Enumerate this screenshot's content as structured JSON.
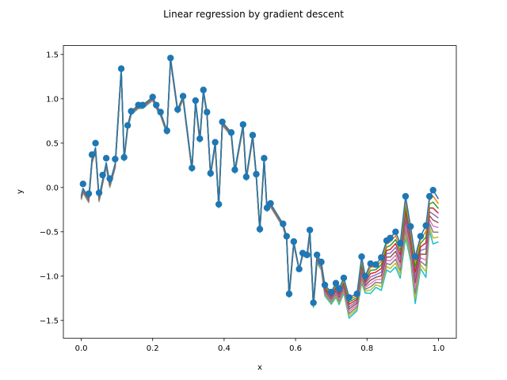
{
  "chart_data": {
    "type": "scatter",
    "title": "Linear regression by gradient descent",
    "xlabel": "x",
    "ylabel": "y",
    "xlim": [
      -0.05,
      1.05
    ],
    "ylim": [
      -1.7,
      1.6
    ],
    "xticks": [
      0.0,
      0.2,
      0.4,
      0.6,
      0.8,
      1.0
    ],
    "xtick_labels": [
      "0.0",
      "0.2",
      "0.4",
      "0.6",
      "0.8",
      "1.0"
    ],
    "yticks": [
      -1.5,
      -1.0,
      -0.5,
      0.0,
      0.5,
      1.0,
      1.5
    ],
    "ytick_labels": [
      "−1.5",
      "−1.0",
      "−0.5",
      "0.0",
      "0.5",
      "1.0",
      "1.5"
    ],
    "grid": false,
    "legend": false,
    "scatter_color": "#1f77b4",
    "line_colors": [
      "#1f77b4",
      "#ff7f0e",
      "#2ca02c",
      "#d62728",
      "#9467bd",
      "#8c564b",
      "#e377c2",
      "#7f7f7f",
      "#bcbd22",
      "#17becf"
    ],
    "points": [
      {
        "x": 0.005,
        "y": 0.04
      },
      {
        "x": 0.021,
        "y": -0.07
      },
      {
        "x": 0.03,
        "y": 0.37
      },
      {
        "x": 0.04,
        "y": 0.5
      },
      {
        "x": 0.05,
        "y": -0.06
      },
      {
        "x": 0.06,
        "y": 0.14
      },
      {
        "x": 0.07,
        "y": 0.33
      },
      {
        "x": 0.08,
        "y": 0.1
      },
      {
        "x": 0.095,
        "y": 0.32
      },
      {
        "x": 0.112,
        "y": 1.34
      },
      {
        "x": 0.12,
        "y": 0.34
      },
      {
        "x": 0.13,
        "y": 0.7
      },
      {
        "x": 0.14,
        "y": 0.86
      },
      {
        "x": 0.16,
        "y": 0.93
      },
      {
        "x": 0.172,
        "y": 0.93
      },
      {
        "x": 0.2,
        "y": 1.02
      },
      {
        "x": 0.21,
        "y": 0.93
      },
      {
        "x": 0.222,
        "y": 0.85
      },
      {
        "x": 0.24,
        "y": 0.64
      },
      {
        "x": 0.25,
        "y": 1.46
      },
      {
        "x": 0.27,
        "y": 0.88
      },
      {
        "x": 0.285,
        "y": 1.03
      },
      {
        "x": 0.31,
        "y": 0.22
      },
      {
        "x": 0.32,
        "y": 0.98
      },
      {
        "x": 0.332,
        "y": 0.55
      },
      {
        "x": 0.342,
        "y": 1.1
      },
      {
        "x": 0.352,
        "y": 0.85
      },
      {
        "x": 0.362,
        "y": 0.16
      },
      {
        "x": 0.375,
        "y": 0.51
      },
      {
        "x": 0.385,
        "y": -0.19
      },
      {
        "x": 0.395,
        "y": 0.74
      },
      {
        "x": 0.42,
        "y": 0.62
      },
      {
        "x": 0.43,
        "y": 0.2
      },
      {
        "x": 0.453,
        "y": 0.71
      },
      {
        "x": 0.462,
        "y": 0.12
      },
      {
        "x": 0.48,
        "y": 0.59
      },
      {
        "x": 0.49,
        "y": 0.15
      },
      {
        "x": 0.5,
        "y": -0.47
      },
      {
        "x": 0.512,
        "y": 0.33
      },
      {
        "x": 0.52,
        "y": -0.23
      },
      {
        "x": 0.53,
        "y": -0.18
      },
      {
        "x": 0.565,
        "y": -0.41
      },
      {
        "x": 0.575,
        "y": -0.55
      },
      {
        "x": 0.582,
        "y": -1.2
      },
      {
        "x": 0.595,
        "y": -0.61
      },
      {
        "x": 0.61,
        "y": -0.92
      },
      {
        "x": 0.62,
        "y": -0.74
      },
      {
        "x": 0.632,
        "y": -0.76
      },
      {
        "x": 0.64,
        "y": -0.48
      },
      {
        "x": 0.65,
        "y": -1.3
      },
      {
        "x": 0.66,
        "y": -0.76
      },
      {
        "x": 0.672,
        "y": -0.84
      },
      {
        "x": 0.682,
        "y": -1.1
      },
      {
        "x": 0.7,
        "y": -1.18
      },
      {
        "x": 0.713,
        "y": -1.08
      },
      {
        "x": 0.722,
        "y": -1.14
      },
      {
        "x": 0.735,
        "y": -1.02
      },
      {
        "x": 0.75,
        "y": -1.24
      },
      {
        "x": 0.772,
        "y": -1.2
      },
      {
        "x": 0.785,
        "y": -0.78
      },
      {
        "x": 0.795,
        "y": -1.0
      },
      {
        "x": 0.81,
        "y": -0.86
      },
      {
        "x": 0.825,
        "y": -0.87
      },
      {
        "x": 0.84,
        "y": -0.79
      },
      {
        "x": 0.855,
        "y": -0.6
      },
      {
        "x": 0.865,
        "y": -0.57
      },
      {
        "x": 0.88,
        "y": -0.5
      },
      {
        "x": 0.893,
        "y": -0.63
      },
      {
        "x": 0.908,
        "y": -0.1
      },
      {
        "x": 0.922,
        "y": -0.44
      },
      {
        "x": 0.935,
        "y": -0.78
      },
      {
        "x": 0.95,
        "y": -0.55
      },
      {
        "x": 0.965,
        "y": -0.43
      },
      {
        "x": 0.975,
        "y": -0.1
      },
      {
        "x": 0.985,
        "y": -0.03
      }
    ]
  }
}
